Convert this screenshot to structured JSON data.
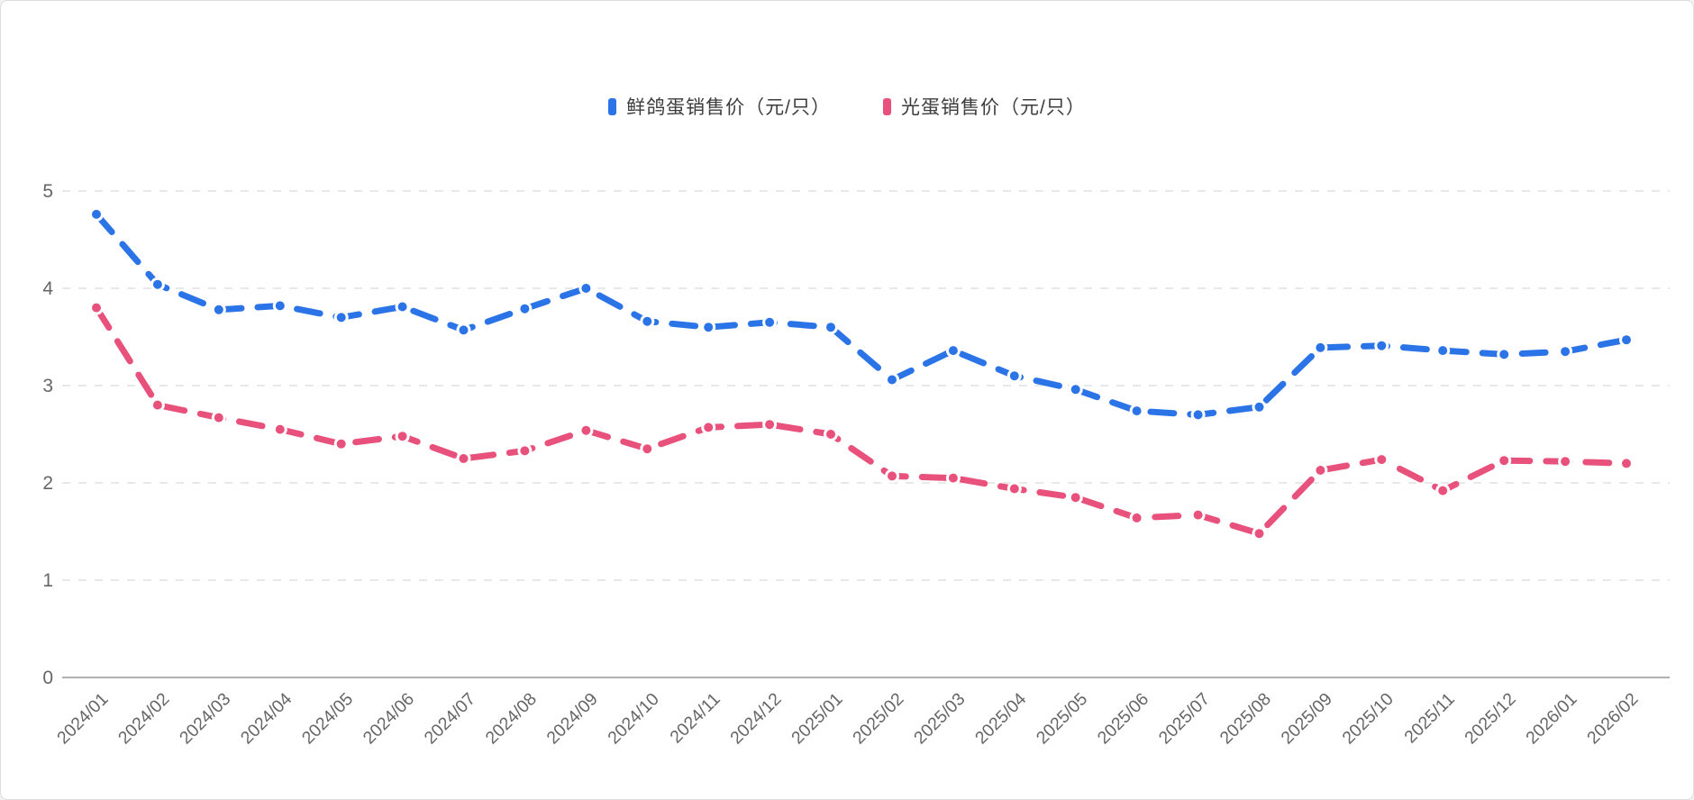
{
  "page": {
    "background": "#ffffff",
    "border_color": "#dcdcdc"
  },
  "legend": {
    "position": "top-center",
    "items": [
      {
        "label": "鲜鸽蛋销售价（元/只）",
        "color": "#2b74e8",
        "marker": "bar-marker"
      },
      {
        "label": "光蛋销售价（元/只）",
        "color": "#e8517b",
        "marker": "bar-marker"
      }
    ]
  },
  "chart_data": {
    "type": "line",
    "title": "",
    "xlabel": "",
    "ylabel": "",
    "ylim": [
      0,
      5
    ],
    "yticks": [
      0,
      1,
      2,
      3,
      4,
      5
    ],
    "grid": true,
    "grid_style": "dashed",
    "line_style": "dashed-with-dots",
    "legend_position": "top-center",
    "x_label_rotation": -45,
    "categories": [
      "2024/01",
      "2024/02",
      "2024/03",
      "2024/04",
      "2024/05",
      "2024/06",
      "2024/07",
      "2024/08",
      "2024/09",
      "2024/10",
      "2024/11",
      "2024/12",
      "2025/01",
      "2025/02",
      "2025/03",
      "2025/04",
      "2025/05",
      "2025/06",
      "2025/07",
      "2025/08",
      "2025/09",
      "2025/10",
      "2025/11",
      "2025/12",
      "2026/01",
      "2026/02"
    ],
    "series": [
      {
        "name": "鲜鸽蛋销售价（元/只）",
        "color": "#2b74e8",
        "values": [
          4.76,
          4.04,
          3.78,
          3.82,
          3.7,
          3.81,
          3.57,
          3.79,
          4.0,
          3.66,
          3.6,
          3.65,
          3.6,
          3.06,
          3.36,
          3.1,
          2.96,
          2.74,
          2.7,
          2.78,
          3.39,
          3.41,
          3.36,
          3.32,
          3.35,
          3.47
        ]
      },
      {
        "name": "光蛋销售价（元/只）",
        "color": "#e8517b",
        "values": [
          3.8,
          2.8,
          2.67,
          2.55,
          2.4,
          2.48,
          2.25,
          2.33,
          2.54,
          2.35,
          2.57,
          2.6,
          2.5,
          2.07,
          2.05,
          1.94,
          1.85,
          1.64,
          1.67,
          1.48,
          2.13,
          2.24,
          1.92,
          2.23,
          2.22,
          2.2
        ]
      }
    ],
    "axis_colors": {
      "axis_line": "#b0b0b0",
      "grid_line": "#e8e8e8",
      "tick_label": "#666666"
    }
  }
}
